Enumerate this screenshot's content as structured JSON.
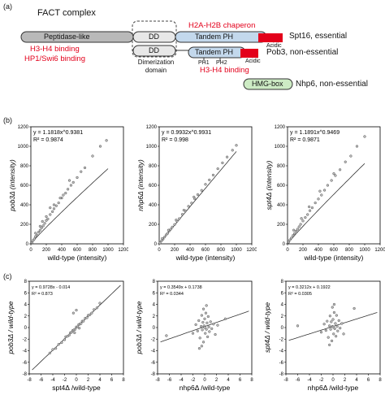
{
  "panel_a": {
    "label": "(a)",
    "title": "FACT complex",
    "peptidase": "Peptidase-like",
    "h3h4_binding_1": "H3-H4 binding",
    "hp1_binding": "HP1/Swi6 binding",
    "dd_top": "DD",
    "dd_bottom": "DD",
    "dimerization_1": "Dimerization",
    "dimerization_2": "domain",
    "h2a_chaperon": "H2A-H2B chaperon",
    "tandem_ph_top": "Tandem PH",
    "acidic_top": "Acidic",
    "spt16_label": "Spt16, essential",
    "tandem_ph_bottom": "Tandem PH",
    "ph1": "PH1",
    "ph2": "PH2",
    "acidic_bottom": "Acidic",
    "h3h4_binding_2": "H3-H4 binding",
    "pob3_label": "Pob3, non-essential",
    "hmg_box": "HMG-box",
    "nhp6_label": "Nhp6, non-essential"
  },
  "panel_b": {
    "label": "(b)"
  },
  "panel_c": {
    "label": "(c)"
  },
  "colors": {
    "red": "#e3001b",
    "grey_box": "#b9b9b9",
    "blue_box": "#c3d8ec",
    "green_box": "#cdebc4"
  },
  "chart_data": [
    {
      "type": "scatter",
      "panel": "b1",
      "xlabel": "wild-type (intensity)",
      "ylabel": "pob3Δ (intensity)",
      "equation": "y = 1.1818x^0.9381",
      "r2": "R² = 0.9874",
      "xlim": [
        0,
        1200
      ],
      "ylim": [
        0,
        1200
      ],
      "xticks": [
        "0",
        "200",
        "400",
        "600",
        "800",
        "1000",
        "1200"
      ],
      "yticks": [
        "0",
        "200",
        "400",
        "600",
        "800",
        "1000",
        "1200"
      ],
      "fit": {
        "a": 1.1818,
        "b": 0.9381
      },
      "points": [
        [
          15,
          12
        ],
        [
          30,
          35
        ],
        [
          45,
          50
        ],
        [
          60,
          75
        ],
        [
          80,
          90
        ],
        [
          100,
          120
        ],
        [
          120,
          140
        ],
        [
          140,
          165
        ],
        [
          160,
          185
        ],
        [
          180,
          210
        ],
        [
          200,
          240
        ],
        [
          220,
          255
        ],
        [
          250,
          300
        ],
        [
          280,
          330
        ],
        [
          300,
          360
        ],
        [
          330,
          390
        ],
        [
          360,
          420
        ],
        [
          400,
          470
        ],
        [
          420,
          500
        ],
        [
          450,
          520
        ],
        [
          480,
          560
        ],
        [
          520,
          600
        ],
        [
          550,
          630
        ],
        [
          600,
          680
        ],
        [
          650,
          740
        ],
        [
          700,
          780
        ],
        [
          800,
          900
        ],
        [
          900,
          1000
        ],
        [
          980,
          1060
        ],
        [
          120,
          180
        ],
        [
          200,
          280
        ],
        [
          300,
          400
        ],
        [
          380,
          470
        ],
        [
          500,
          650
        ],
        [
          60,
          110
        ],
        [
          150,
          230
        ],
        [
          250,
          370
        ]
      ]
    },
    {
      "type": "scatter",
      "panel": "b2",
      "xlabel": "wild-type (intensity)",
      "ylabel": "nhp6Δ (intensity)",
      "equation": "y = 0.9932x^0.9931",
      "r2": "R² = 0.998",
      "xlim": [
        0,
        1200
      ],
      "ylim": [
        0,
        1200
      ],
      "xticks": [
        "0",
        "200",
        "400",
        "600",
        "800",
        "1000",
        "1200"
      ],
      "yticks": [
        "0",
        "200",
        "400",
        "600",
        "800",
        "1000",
        "1200"
      ],
      "fit": {
        "a": 0.9932,
        "b": 0.9931
      },
      "points": [
        [
          10,
          10
        ],
        [
          30,
          30
        ],
        [
          50,
          48
        ],
        [
          70,
          70
        ],
        [
          90,
          92
        ],
        [
          110,
          108
        ],
        [
          130,
          132
        ],
        [
          150,
          150
        ],
        [
          170,
          172
        ],
        [
          200,
          198
        ],
        [
          230,
          232
        ],
        [
          260,
          258
        ],
        [
          300,
          302
        ],
        [
          340,
          338
        ],
        [
          380,
          385
        ],
        [
          420,
          418
        ],
        [
          460,
          462
        ],
        [
          500,
          505
        ],
        [
          550,
          548
        ],
        [
          600,
          610
        ],
        [
          650,
          655
        ],
        [
          700,
          705
        ],
        [
          760,
          770
        ],
        [
          820,
          830
        ],
        [
          880,
          890
        ],
        [
          950,
          960
        ],
        [
          1000,
          1010
        ],
        [
          40,
          55
        ],
        [
          120,
          140
        ],
        [
          220,
          245
        ],
        [
          320,
          345
        ],
        [
          450,
          480
        ]
      ]
    },
    {
      "type": "scatter",
      "panel": "b3",
      "xlabel": "wild-type (intensity)",
      "ylabel": "spt4Δ (intensity)",
      "equation": "y = 1.1891x^0.9469",
      "r2": "R² = 0.9871",
      "xlim": [
        0,
        1200
      ],
      "ylim": [
        0,
        1200
      ],
      "xticks": [
        "0",
        "200",
        "400",
        "600",
        "800",
        "1000",
        "1200"
      ],
      "yticks": [
        "0",
        "200",
        "400",
        "600",
        "800",
        "1000",
        "1200"
      ],
      "fit": {
        "a": 1.1891,
        "b": 0.9469
      },
      "points": [
        [
          15,
          18
        ],
        [
          30,
          40
        ],
        [
          50,
          60
        ],
        [
          70,
          85
        ],
        [
          90,
          105
        ],
        [
          110,
          130
        ],
        [
          130,
          150
        ],
        [
          150,
          175
        ],
        [
          170,
          200
        ],
        [
          200,
          235
        ],
        [
          230,
          270
        ],
        [
          260,
          300
        ],
        [
          290,
          340
        ],
        [
          320,
          370
        ],
        [
          360,
          420
        ],
        [
          400,
          460
        ],
        [
          440,
          500
        ],
        [
          480,
          550
        ],
        [
          520,
          600
        ],
        [
          570,
          650
        ],
        [
          620,
          700
        ],
        [
          680,
          760
        ],
        [
          750,
          840
        ],
        [
          820,
          900
        ],
        [
          900,
          1000
        ],
        [
          1000,
          1100
        ],
        [
          80,
          140
        ],
        [
          180,
          260
        ],
        [
          280,
          380
        ],
        [
          420,
          540
        ],
        [
          600,
          720
        ]
      ]
    },
    {
      "type": "scatter",
      "panel": "c1",
      "xlabel": "spt4Δ /wild-type",
      "ylabel": "pob3Δ / wild-type",
      "equation": "y = 0.9728x - 0.014",
      "r2": "R² = 0.873",
      "xlim": [
        -8,
        8
      ],
      "ylim": [
        -8,
        8
      ],
      "xticks": [
        "-8",
        "-6",
        "-4",
        "-2",
        "0",
        "2",
        "4",
        "6",
        "8"
      ],
      "yticks": [
        "-8",
        "-6",
        "-4",
        "-2",
        "0",
        "2",
        "4",
        "6",
        "8"
      ],
      "fit": {
        "slope": 0.9728,
        "intercept": -0.014
      },
      "points": [
        [
          -4.5,
          -4.4
        ],
        [
          -4,
          -3.8
        ],
        [
          -3.5,
          -3.6
        ],
        [
          -3,
          -2.9
        ],
        [
          -2.5,
          -2.6
        ],
        [
          -2,
          -2.1
        ],
        [
          -1.8,
          -1.6
        ],
        [
          -1.5,
          -1.5
        ],
        [
          -1.2,
          -1.3
        ],
        [
          -1,
          -0.9
        ],
        [
          -0.8,
          -0.8
        ],
        [
          -0.6,
          -0.5
        ],
        [
          -0.4,
          -0.4
        ],
        [
          -0.2,
          -0.3
        ],
        [
          0,
          0.1
        ],
        [
          0.2,
          0.1
        ],
        [
          0.4,
          0.5
        ],
        [
          0.6,
          0.6
        ],
        [
          0.8,
          0.7
        ],
        [
          1,
          1.1
        ],
        [
          1.2,
          1.1
        ],
        [
          1.5,
          1.6
        ],
        [
          1.8,
          1.7
        ],
        [
          2,
          2.1
        ],
        [
          2.3,
          2.2
        ],
        [
          2.6,
          2.5
        ],
        [
          3,
          3.1
        ],
        [
          3.5,
          3.4
        ],
        [
          4,
          4.2
        ],
        [
          -0.5,
          2.5
        ],
        [
          0,
          3.0
        ],
        [
          -0.3,
          -0.9
        ],
        [
          0.5,
          -0.1
        ]
      ]
    },
    {
      "type": "scatter",
      "panel": "c2",
      "xlabel": "nhp6Δ /wild-type",
      "ylabel": "pob3Δ / wild-type",
      "equation": "y = 0.3549x + 0.1738",
      "r2": "R² = 0.0344",
      "xlim": [
        -8,
        8
      ],
      "ylim": [
        -8,
        8
      ],
      "xticks": [
        "-8",
        "-6",
        "-4",
        "-2",
        "0",
        "2",
        "4",
        "6",
        "8"
      ],
      "yticks": [
        "-8",
        "-6",
        "-4",
        "-2",
        "0",
        "2",
        "4",
        "6",
        "8"
      ],
      "fit": {
        "slope": 0.3549,
        "intercept": 0.1738
      },
      "points": [
        [
          -2,
          -1
        ],
        [
          -1.5,
          0.5
        ],
        [
          -1.2,
          -0.6
        ],
        [
          -1,
          1.2
        ],
        [
          -0.8,
          -1.8
        ],
        [
          -0.6,
          0.2
        ],
        [
          -0.5,
          2.1
        ],
        [
          -0.4,
          -0.4
        ],
        [
          -0.3,
          0.9
        ],
        [
          -0.2,
          -2.5
        ],
        [
          -0.1,
          0.3
        ],
        [
          0,
          0.0
        ],
        [
          0,
          1.5
        ],
        [
          0.1,
          -1.0
        ],
        [
          0.2,
          2.5
        ],
        [
          0.3,
          -0.3
        ],
        [
          0.4,
          0.8
        ],
        [
          0.5,
          -1.6
        ],
        [
          0.6,
          1.9
        ],
        [
          0.7,
          0.1
        ],
        [
          0.8,
          -0.7
        ],
        [
          1,
          1.0
        ],
        [
          1.2,
          -0.2
        ],
        [
          1.5,
          0.6
        ],
        [
          1.8,
          -1.2
        ],
        [
          2.2,
          0.4
        ],
        [
          -0.2,
          3.2
        ],
        [
          0.3,
          3.8
        ],
        [
          -0.5,
          -3.2
        ],
        [
          3.5,
          1.5
        ],
        [
          -6.5,
          -1.4
        ],
        [
          -0.9,
          -3.6
        ]
      ]
    },
    {
      "type": "scatter",
      "panel": "c3",
      "xlabel": "nhp6Δ /wild-type",
      "ylabel": "spt4Δ / wild-type",
      "equation": "y = 0.3212x + 0.1922",
      "r2": "R² = 0.0305",
      "xlim": [
        -8,
        8
      ],
      "ylim": [
        -8,
        8
      ],
      "xticks": [
        "-8",
        "-6",
        "-4",
        "-2",
        "0",
        "2",
        "4",
        "6",
        "8"
      ],
      "yticks": [
        "-8",
        "-6",
        "-4",
        "-2",
        "0",
        "2",
        "4",
        "6",
        "8"
      ],
      "fit": {
        "slope": 0.3212,
        "intercept": 0.1922
      },
      "points": [
        [
          -2,
          -0.8
        ],
        [
          -1.5,
          0.6
        ],
        [
          -1.2,
          -0.5
        ],
        [
          -1,
          1.1
        ],
        [
          -0.8,
          -1.7
        ],
        [
          -0.6,
          0.3
        ],
        [
          -0.5,
          2.0
        ],
        [
          -0.4,
          -0.3
        ],
        [
          -0.3,
          1.0
        ],
        [
          -0.2,
          -2.3
        ],
        [
          -0.1,
          0.2
        ],
        [
          0,
          0.1
        ],
        [
          0,
          1.4
        ],
        [
          0.1,
          -1.1
        ],
        [
          0.2,
          2.6
        ],
        [
          0.3,
          -0.2
        ],
        [
          0.4,
          0.7
        ],
        [
          0.5,
          -1.5
        ],
        [
          0.6,
          2.1
        ],
        [
          0.7,
          0.2
        ],
        [
          0.8,
          -0.6
        ],
        [
          1,
          1.2
        ],
        [
          1.2,
          -0.1
        ],
        [
          1.5,
          0.7
        ],
        [
          1.8,
          -1.1
        ],
        [
          -0.1,
          3.5
        ],
        [
          0.2,
          4.0
        ],
        [
          -0.6,
          -3.0
        ],
        [
          3.6,
          3.3
        ],
        [
          -6,
          0.3
        ]
      ]
    }
  ]
}
